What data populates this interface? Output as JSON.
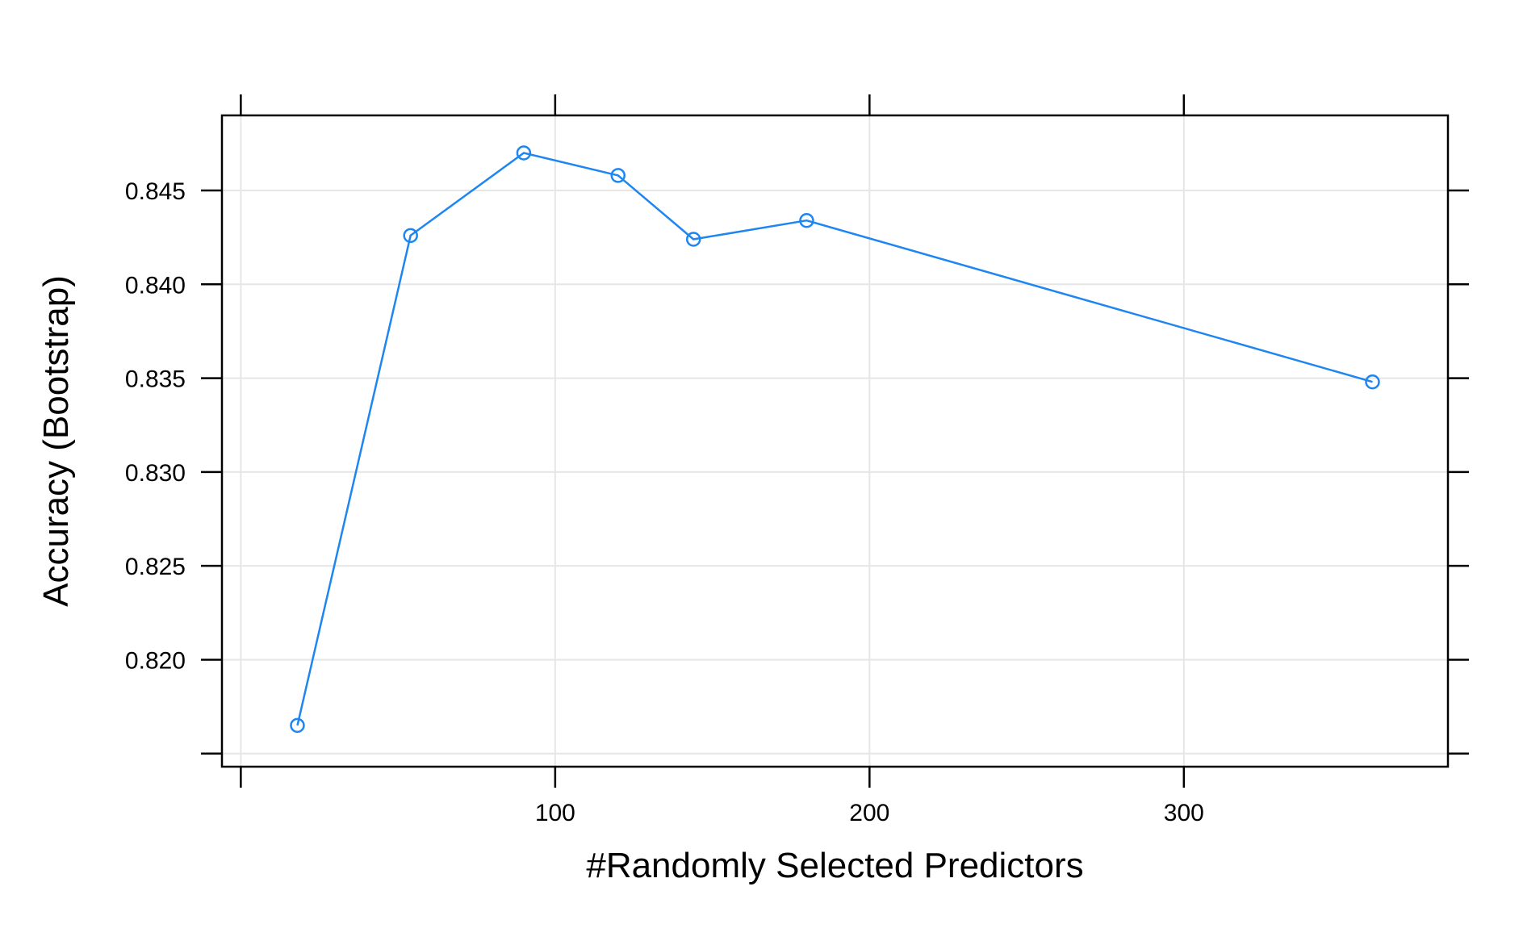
{
  "chart_data": {
    "type": "line",
    "title": "",
    "xlabel": "#Randomly Selected Predictors",
    "ylabel": "Accuracy (Bootstrap)",
    "x": [
      18,
      54,
      90,
      120,
      144,
      180,
      360
    ],
    "series": [
      {
        "values": [
          0.8165,
          0.8426,
          0.847,
          0.8458,
          0.8424,
          0.8434,
          0.8348
        ]
      }
    ],
    "xlim": [
      -6,
      384
    ],
    "ylim": [
      0.8143,
      0.849
    ],
    "x_ticks": [
      0,
      100,
      200,
      300
    ],
    "x_tick_labels": [
      "",
      "100",
      "200",
      "300"
    ],
    "y_ticks": [
      0.815,
      0.82,
      0.825,
      0.83,
      0.835,
      0.84,
      0.845
    ],
    "y_tick_labels": [
      "",
      "0.820",
      "0.825",
      "0.830",
      "0.835",
      "0.840",
      "0.845"
    ],
    "grid": true,
    "legend": "none",
    "colors": {
      "series": "#1E86F0",
      "grid": "#E6E6E6",
      "axis": "#000000"
    }
  }
}
